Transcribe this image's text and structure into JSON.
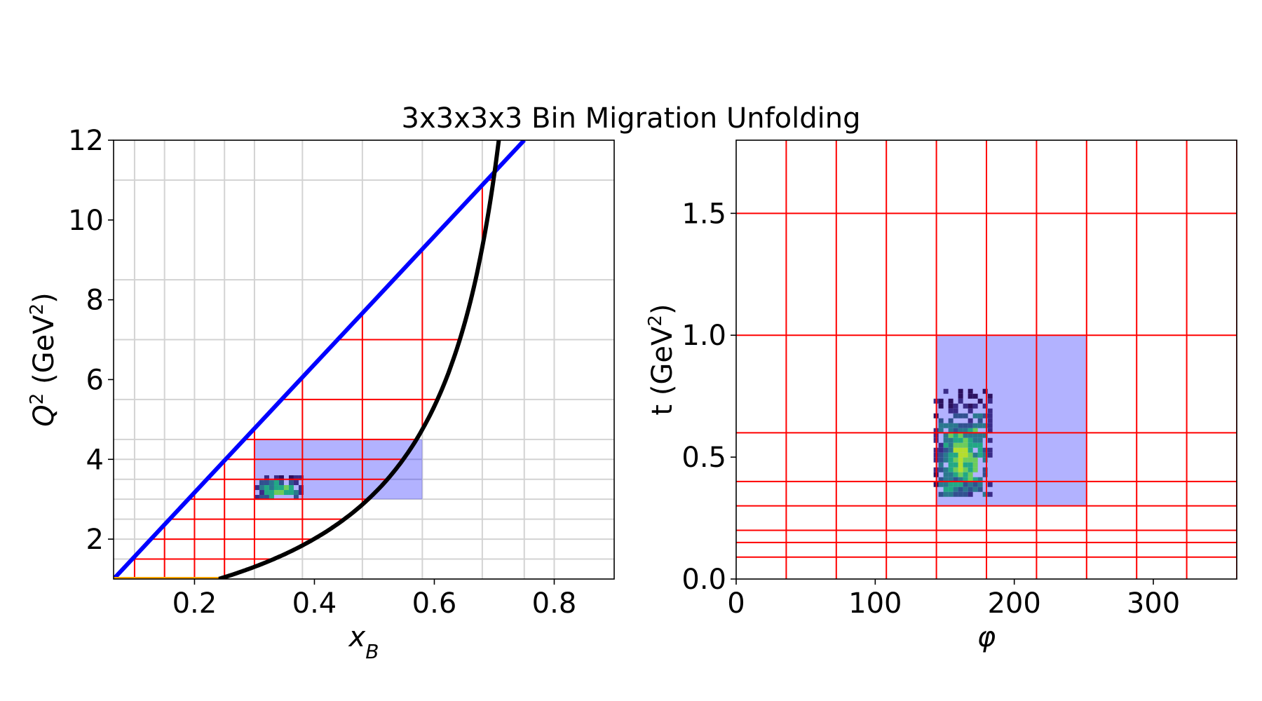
{
  "title": "3x3x3x3 Bin Migration Unfolding",
  "chart_data": [
    {
      "type": "heatmap",
      "panel": "left",
      "xlabel": "x_B",
      "ylabel": "Q^2 (GeV^2)",
      "xlim": [
        0.065,
        0.9
      ],
      "ylim": [
        1,
        12
      ],
      "xticks": [
        0.2,
        0.4,
        0.6,
        0.8
      ],
      "yticks": [
        2,
        4,
        6,
        8,
        10,
        12
      ],
      "grid": true,
      "grid_lines": {
        "x": [
          0.1,
          0.15,
          0.2,
          0.25,
          0.3,
          0.38,
          0.48,
          0.58,
          0.68,
          0.75,
          0.8
        ],
        "y": [
          1.5,
          2.0,
          2.5,
          3.0,
          3.5,
          4.0,
          4.5,
          5.5,
          7.0,
          8.5,
          11.0
        ]
      },
      "bin_edges": {
        "x": [
          0.1,
          0.15,
          0.2,
          0.25,
          0.3,
          0.38,
          0.48,
          0.58,
          0.68,
          0.75
        ],
        "y": [
          1.0,
          1.5,
          2.0,
          2.5,
          3.0,
          3.5,
          4.0,
          4.5,
          5.5,
          7.0,
          11.0
        ]
      },
      "boundary_lines": [
        {
          "name": "upper",
          "color": "#0000ff",
          "points": [
            [
              0.065,
              1.0
            ],
            [
              0.75,
              12.0
            ]
          ]
        },
        {
          "name": "lower",
          "color": "#000000",
          "function": "W_cut"
        },
        {
          "name": "bottom",
          "color": "#ffa500",
          "points": [
            [
              0.065,
              1.0
            ],
            [
              0.24,
              1.0
            ]
          ]
        }
      ],
      "highlight_bin": {
        "x": [
          0.3,
          0.58
        ],
        "y": [
          3.0,
          4.5
        ],
        "color": "#0000ff",
        "alpha": 0.3
      },
      "histogram_region": {
        "x": [
          0.3,
          0.38
        ],
        "y": [
          3.0,
          3.6
        ]
      }
    },
    {
      "type": "heatmap",
      "panel": "right",
      "xlabel": "φ",
      "ylabel": "t (GeV^2)",
      "xlim": [
        0,
        360
      ],
      "ylim": [
        0,
        1.8
      ],
      "xticks": [
        0,
        100,
        200,
        300
      ],
      "yticks": [
        "0.0",
        "0.5",
        "1.0",
        "1.5"
      ],
      "bin_edges": {
        "x": [
          36,
          72,
          108,
          144,
          180,
          216,
          252,
          288,
          324,
          360
        ],
        "y": [
          0.09,
          0.15,
          0.2,
          0.3,
          0.4,
          0.6,
          1.0,
          1.5
        ]
      },
      "highlight_bin": {
        "x": [
          144,
          252
        ],
        "y": [
          0.3,
          1.0
        ],
        "color": "#0000ff",
        "alpha": 0.3
      },
      "histogram_region": {
        "x": [
          142,
          184
        ],
        "y": [
          0.34,
          0.78
        ]
      }
    }
  ]
}
